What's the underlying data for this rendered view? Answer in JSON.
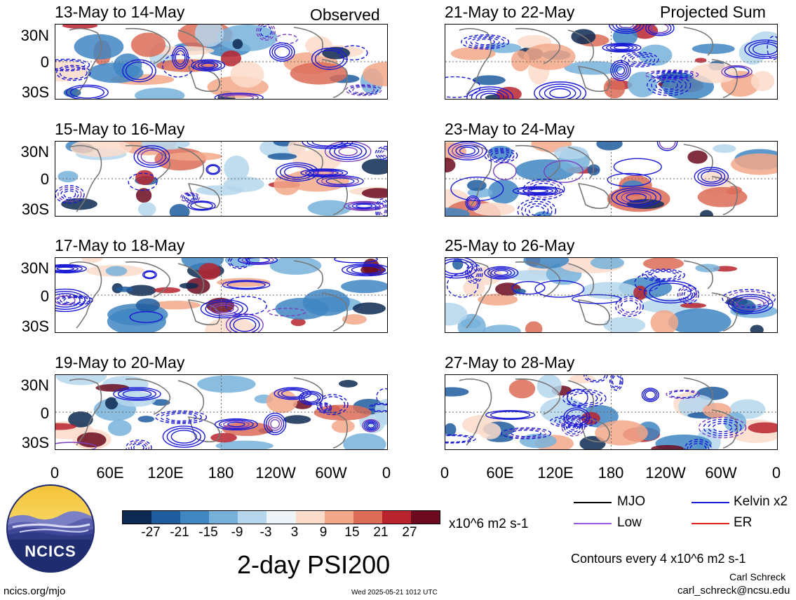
{
  "panels_left": [
    {
      "title": "13-May to 14-May",
      "label": "Observed"
    },
    {
      "title": "15-May to 16-May",
      "label": ""
    },
    {
      "title": "17-May to 18-May",
      "label": ""
    },
    {
      "title": "19-May to 20-May",
      "label": ""
    }
  ],
  "panels_right": [
    {
      "title": "21-May to 22-May",
      "label": "Projected Sum"
    },
    {
      "title": "23-May to 24-May",
      "label": ""
    },
    {
      "title": "25-May to 26-May",
      "label": ""
    },
    {
      "title": "27-May to 28-May",
      "label": ""
    }
  ],
  "lat_labels": [
    "30N",
    "0",
    "30S"
  ],
  "lon_labels": [
    "0",
    "60E",
    "120E",
    "180",
    "120W",
    "60W",
    "0"
  ],
  "colorbar": {
    "labels": [
      "-27",
      "-21",
      "-15",
      "-9",
      "-3",
      "3",
      "9",
      "15",
      "21",
      "27"
    ],
    "units": "x10^6 m2 s-1",
    "colors": [
      "#0d2a52",
      "#1f5c9e",
      "#3f86c2",
      "#77b1da",
      "#b5d6ec",
      "#eef4f8",
      "#fbdccb",
      "#f2a889",
      "#dc6c58",
      "#b8232e",
      "#6b0a1e"
    ]
  },
  "legend": {
    "items": [
      {
        "label": "MJO",
        "color": "#000000"
      },
      {
        "label": "Kelvin x2",
        "color": "#1a1ad6"
      },
      {
        "label": "Low",
        "color": "#9955dd"
      },
      {
        "label": "ER",
        "color": "#e02020"
      }
    ],
    "contour_note": "Contours every 4 x10^6 m2 s-1"
  },
  "main_title": "2-day PSI200",
  "logo_text": "NCICS",
  "footer": {
    "url": "ncics.org/mjo",
    "timestamp": "Wed 2025-05-21 1012 UTC",
    "author": "Carl Schreck",
    "email": "carl_schreck@ncsu.edu"
  }
}
